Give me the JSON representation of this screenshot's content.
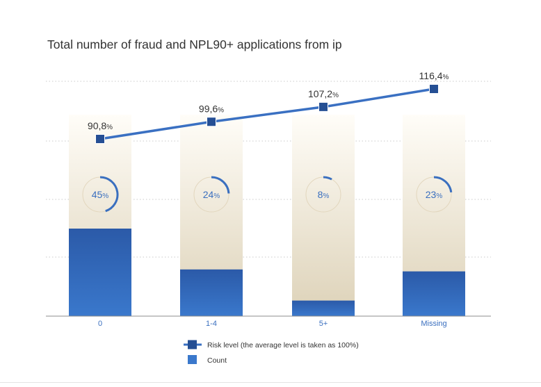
{
  "chart_data": {
    "type": "bar",
    "title": "Total number of fraud and NPL90+ applications from ip",
    "categories": [
      "0",
      "1-4",
      "5+",
      "Missing"
    ],
    "series": [
      {
        "name": "Count",
        "kind": "bar",
        "values": [
          45,
          24,
          8,
          23
        ],
        "color": "#2a60b2"
      },
      {
        "name": "Risk level (the average level is taken as 100%)",
        "kind": "line",
        "values": [
          90.8,
          99.6,
          107.2,
          116.4
        ],
        "labels": [
          "90,8%",
          "99,6%",
          "107,2%",
          "116,4%"
        ],
        "color": "#3a70c2"
      }
    ],
    "share_labels": [
      "45%",
      "24%",
      "8%",
      "23%"
    ],
    "grid": true,
    "legend_position": "bottom-center",
    "colors": {
      "bar_top": "#2b5aa8",
      "bar_bottom": "#3a78cc",
      "column_background_top": "#fffdf8",
      "column_background_bottom": "#ddd2b8",
      "line": "#3a70c2",
      "marker": "#254f94",
      "text": "#333333",
      "percent_text": "#3a6fbf"
    }
  }
}
